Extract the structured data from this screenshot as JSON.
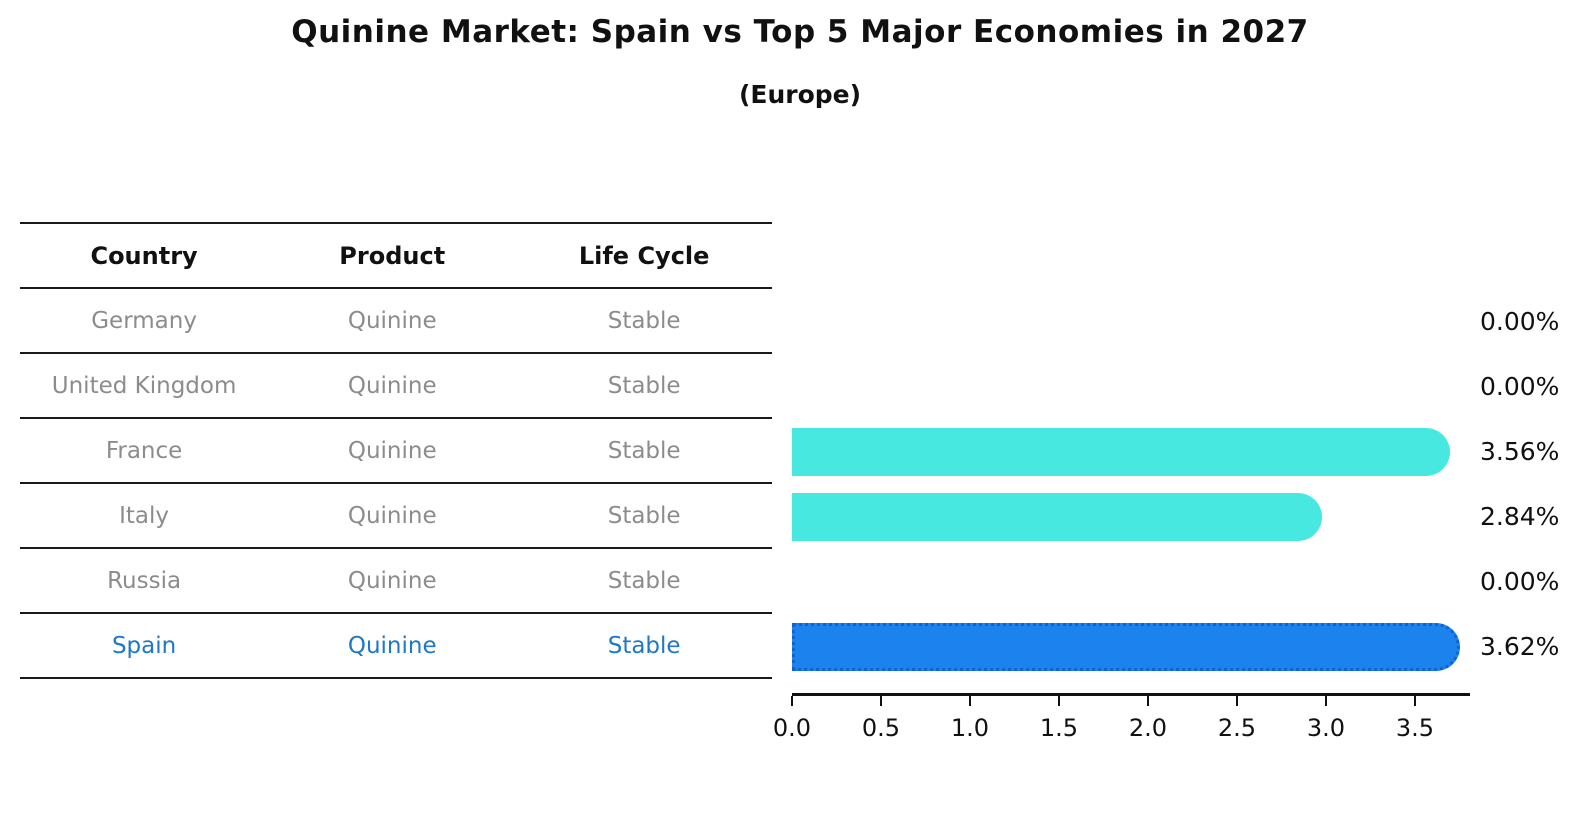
{
  "title": "Quinine Market: Spain vs Top 5 Major Economies in 2027",
  "subtitle": "(Europe)",
  "colors": {
    "bar_default": "#47e8e0",
    "bar_highlight": "#1b82ee",
    "bar_highlight_border": "#0f63d2",
    "highlight_text": "#1f77c8",
    "table_text": "#8c8c8c",
    "axis_text": "#111111"
  },
  "table": {
    "headers": [
      "Country",
      "Product",
      "Life Cycle"
    ],
    "rows": [
      {
        "country": "Germany",
        "product": "Quinine",
        "life_cycle": "Stable",
        "highlighted": false
      },
      {
        "country": "United Kingdom",
        "product": "Quinine",
        "life_cycle": "Stable",
        "highlighted": false
      },
      {
        "country": "France",
        "product": "Quinine",
        "life_cycle": "Stable",
        "highlighted": false
      },
      {
        "country": "Italy",
        "product": "Quinine",
        "life_cycle": "Stable",
        "highlighted": false
      },
      {
        "country": "Russia",
        "product": "Quinine",
        "life_cycle": "Stable",
        "highlighted": false
      },
      {
        "country": "Spain",
        "product": "Quinine",
        "life_cycle": "Stable",
        "highlighted": true
      }
    ]
  },
  "chart_data": {
    "type": "bar",
    "orientation": "horizontal",
    "title": "Quinine Market: Spain vs Top 5 Major Economies in 2027",
    "subtitle": "(Europe)",
    "categories": [
      "Germany",
      "United Kingdom",
      "France",
      "Italy",
      "Russia",
      "Spain"
    ],
    "values": [
      0.0,
      0.0,
      3.56,
      2.84,
      0.0,
      3.62
    ],
    "value_labels": [
      "0.00%",
      "0.00%",
      "3.56%",
      "2.84%",
      "0.00%",
      "3.62%"
    ],
    "highlighted_category": "Spain",
    "xlabel": "",
    "ylabel": "",
    "x_ticks": [
      "0.0",
      "0.5",
      "1.0",
      "1.5",
      "2.0",
      "2.5",
      "3.0",
      "3.5"
    ],
    "xlim": [
      0,
      3.8
    ],
    "grid": false,
    "legend": false
  }
}
